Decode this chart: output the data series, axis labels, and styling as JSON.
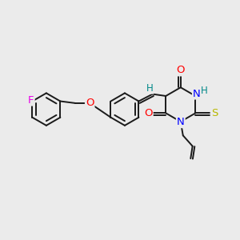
{
  "bg_color": "#ebebeb",
  "bond_color": "#1a1a1a",
  "atom_colors": {
    "F": "#e800e8",
    "O": "#ff0000",
    "N": "#0000ff",
    "S": "#b8b800",
    "H": "#008888",
    "C": "#1a1a1a"
  },
  "lw": 1.4,
  "fs": 8.5
}
